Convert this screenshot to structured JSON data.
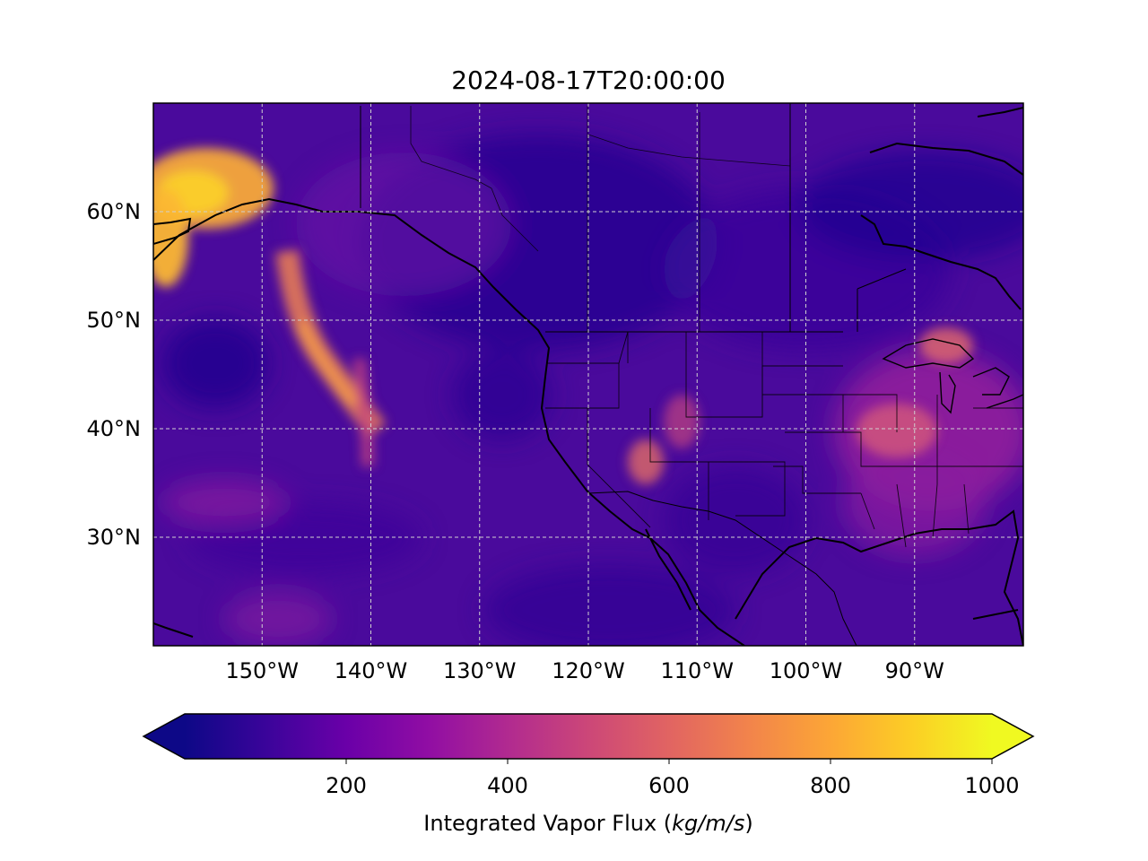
{
  "map": {
    "title": "2024-08-17T20:00:00",
    "projection": "PlateCarree",
    "extent": {
      "lon_min": -160,
      "lon_max": -80,
      "lat_min": 20,
      "lat_max": 70
    },
    "gridlines": true,
    "lon_ticks": [
      {
        "value": -150,
        "label": "150°W"
      },
      {
        "value": -140,
        "label": "140°W"
      },
      {
        "value": -130,
        "label": "130°W"
      },
      {
        "value": -120,
        "label": "120°W"
      },
      {
        "value": -110,
        "label": "110°W"
      },
      {
        "value": -100,
        "label": "100°W"
      },
      {
        "value": -90,
        "label": "90°W"
      }
    ],
    "lat_ticks": [
      {
        "value": 60,
        "label": "60°N"
      },
      {
        "value": 50,
        "label": "50°N"
      },
      {
        "value": 40,
        "label": "40°N"
      },
      {
        "value": 30,
        "label": "30°N"
      }
    ],
    "field": "Integrated Vapor Flux",
    "colormap": "plasma"
  },
  "colorbar": {
    "label": "Integrated Vapor Flux",
    "unit": "kg/m/s",
    "min": 0,
    "max": 1000,
    "extend": "both",
    "ticks": [
      {
        "value": 200,
        "label": "200"
      },
      {
        "value": 400,
        "label": "400"
      },
      {
        "value": 600,
        "label": "600"
      },
      {
        "value": 800,
        "label": "800"
      },
      {
        "value": 1000,
        "label": "1000"
      }
    ],
    "colors": [
      "#0d0887",
      "#3a049a",
      "#6a00a8",
      "#900da4",
      "#b12a90",
      "#cc4778",
      "#e16462",
      "#f2844b",
      "#fca636",
      "#fcce25",
      "#f0f921"
    ]
  }
}
